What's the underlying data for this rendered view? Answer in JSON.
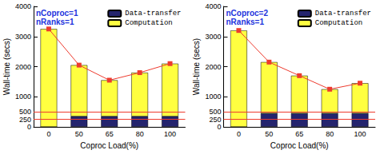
{
  "chart_data": [
    {
      "type": "bar",
      "stacked": true,
      "annotations": [
        "nCoproc=1",
        "nRanks=1"
      ],
      "x_label": "Coproc Load(%)",
      "y_label": "Wall-time (secs)",
      "categories": [
        "0",
        "50",
        "65",
        "80",
        "100"
      ],
      "series": [
        {
          "name": "Data-transfer",
          "color": "#24246e",
          "values": [
            0,
            350,
            350,
            350,
            350
          ]
        },
        {
          "name": "Computation",
          "color": "#ffff40",
          "values": [
            3250,
            1700,
            1200,
            1450,
            1750
          ]
        },
        {
          "type": "line",
          "color": "#ee3b2e",
          "marker": "square",
          "values": [
            3250,
            2050,
            1550,
            1800,
            2100
          ]
        }
      ],
      "reference_lines": [
        250,
        500
      ],
      "ylim": [
        0,
        4000
      ],
      "yticks": [
        0,
        250,
        500,
        1000,
        2000,
        3000,
        4000
      ],
      "grid": false,
      "legend": "top-right"
    },
    {
      "type": "bar",
      "stacked": true,
      "annotations": [
        "nCoproc=2",
        "nRanks=1"
      ],
      "x_label": "Coproc Load(%)",
      "y_label": "Wall-time (secs)",
      "categories": [
        "0",
        "50",
        "65",
        "80",
        "100"
      ],
      "series": [
        {
          "name": "Data-transfer",
          "color": "#24246e",
          "values": [
            0,
            450,
            450,
            450,
            450
          ]
        },
        {
          "name": "Computation",
          "color": "#ffff40",
          "values": [
            3200,
            1700,
            1250,
            800,
            1000
          ]
        },
        {
          "type": "line",
          "color": "#ee3b2e",
          "marker": "square",
          "values": [
            3200,
            2150,
            1700,
            1250,
            1450
          ]
        }
      ],
      "reference_lines": [
        250,
        500
      ],
      "ylim": [
        0,
        4000
      ],
      "yticks": [
        0,
        250,
        500,
        1000,
        2000,
        3000,
        4000
      ],
      "grid": false,
      "legend": "top-right"
    }
  ]
}
